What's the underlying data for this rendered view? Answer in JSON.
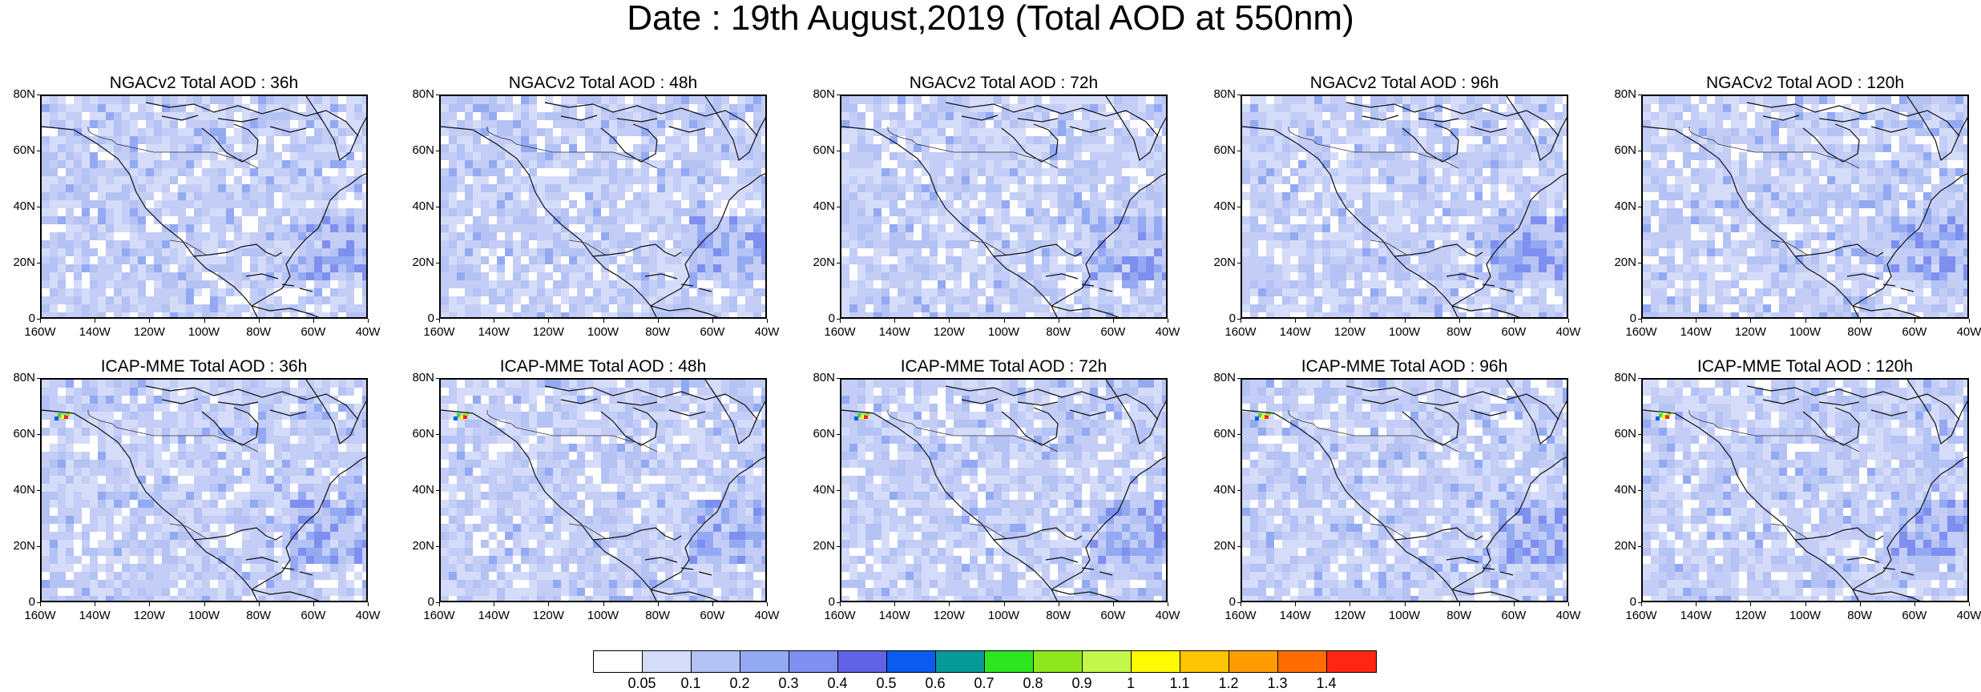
{
  "title": "Date : 19th August,2019 (Total AOD at 550nm)",
  "rows": [
    {
      "model": "NGACv2",
      "panels": [
        {
          "title": "NGACv2 Total AOD : 36h"
        },
        {
          "title": "NGACv2 Total AOD : 48h"
        },
        {
          "title": "NGACv2 Total AOD : 72h"
        },
        {
          "title": "NGACv2 Total AOD : 96h"
        },
        {
          "title": "NGACv2 Total AOD : 120h"
        }
      ]
    },
    {
      "model": "ICAP-MME",
      "panels": [
        {
          "title": "ICAP-MME Total AOD : 36h"
        },
        {
          "title": "ICAP-MME Total AOD : 48h"
        },
        {
          "title": "ICAP-MME Total AOD : 72h"
        },
        {
          "title": "ICAP-MME Total AOD : 96h"
        },
        {
          "title": "ICAP-MME Total AOD : 120h"
        }
      ]
    }
  ],
  "lat_labels": [
    "80N",
    "60N",
    "40N",
    "20N",
    "0"
  ],
  "lon_labels": [
    "160W",
    "140W",
    "120W",
    "100W",
    "80W",
    "60W",
    "40W"
  ],
  "colorbar": {
    "colors": [
      "#ffffff",
      "#d4dcf9",
      "#b4c2f4",
      "#93aaf3",
      "#7f8ff0",
      "#6262e6",
      "#0a5cf0",
      "#069a99",
      "#2ee61f",
      "#8ee61f",
      "#c4f74c",
      "#fffa00",
      "#ffc402",
      "#ff9c00",
      "#ff6d00",
      "#ff2612"
    ],
    "labels": [
      "0.05",
      "0.1",
      "0.2",
      "0.3",
      "0.4",
      "0.5",
      "0.6",
      "0.7",
      "0.8",
      "0.9",
      "1",
      "1.1",
      "1.2",
      "1.3",
      "1.4"
    ]
  }
}
